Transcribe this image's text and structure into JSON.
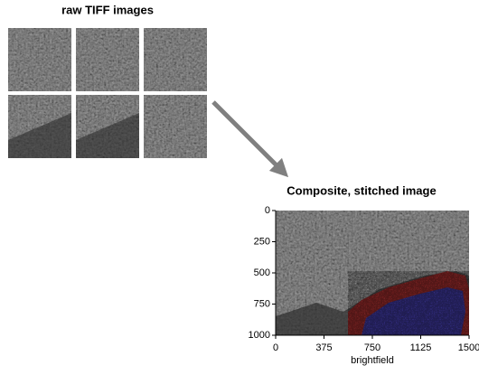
{
  "raw_title": "raw TIFF images",
  "composite_title": "Composite, stitched image",
  "image_axes": {
    "xlim": [
      0,
      1500
    ],
    "ylim": [
      0,
      1000
    ],
    "y_inverted": true,
    "xticks": [
      0,
      375,
      750,
      1125,
      1500
    ],
    "yticks": [
      0,
      250,
      500,
      750,
      1000
    ],
    "xlabel": "brightfield"
  }
}
